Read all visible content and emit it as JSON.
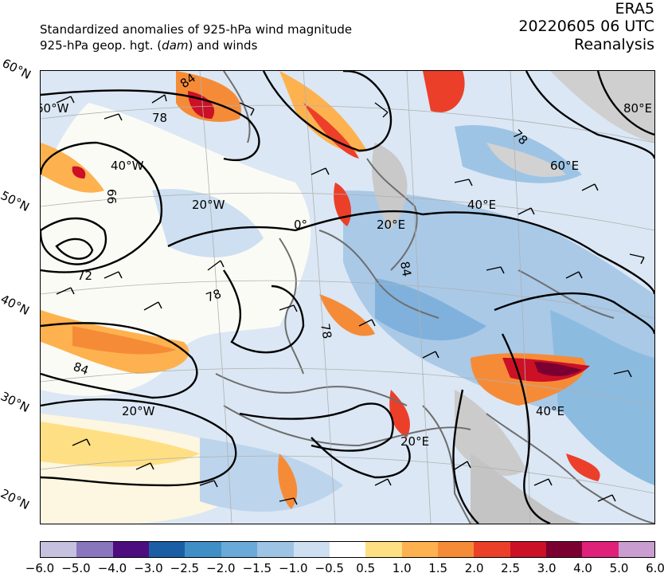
{
  "title": {
    "line1": "Standardized anomalies of 925-hPa wind magnitude",
    "line2_pre": "925-hPa geop. hgt. (",
    "line2_unit": "dam",
    "line2_post": ") and winds",
    "dataset": "ERA5",
    "datetime": "20220605 06 UTC",
    "product": "Reanalysis"
  },
  "map": {
    "lat_labels": [
      "60°N",
      "50°N",
      "40°N",
      "30°N",
      "20°N"
    ],
    "lon_labels": [
      "60°W",
      "40°W",
      "20°W",
      "0°",
      "20°E",
      "40°E",
      "60°E",
      "80°E",
      "20°W",
      "20°E",
      "40°E"
    ],
    "contour_labels": [
      "84",
      "78",
      "66",
      "72",
      "78",
      "84",
      "78",
      "84",
      "78"
    ]
  },
  "colorbar": {
    "ticks": [
      "−6.0",
      "−5.0",
      "−4.0",
      "−3.0",
      "−2.5",
      "−2.0",
      "−1.5",
      "−1.0",
      "−0.5",
      "0.5",
      "1.0",
      "1.5",
      "2.0",
      "2.5",
      "3.0",
      "4.0",
      "5.0",
      "6.0"
    ],
    "colors": [
      "#c7c1e0",
      "#8a76bd",
      "#4e0d7f",
      "#1c5ea6",
      "#3f8fc6",
      "#6aaad8",
      "#9ec4e5",
      "#cddff1",
      "#ffffff",
      "#fedf84",
      "#fdb24f",
      "#f68b37",
      "#ec3f2a",
      "#cc1026",
      "#7a0032",
      "#e0217a",
      "#c99dd0"
    ]
  }
}
